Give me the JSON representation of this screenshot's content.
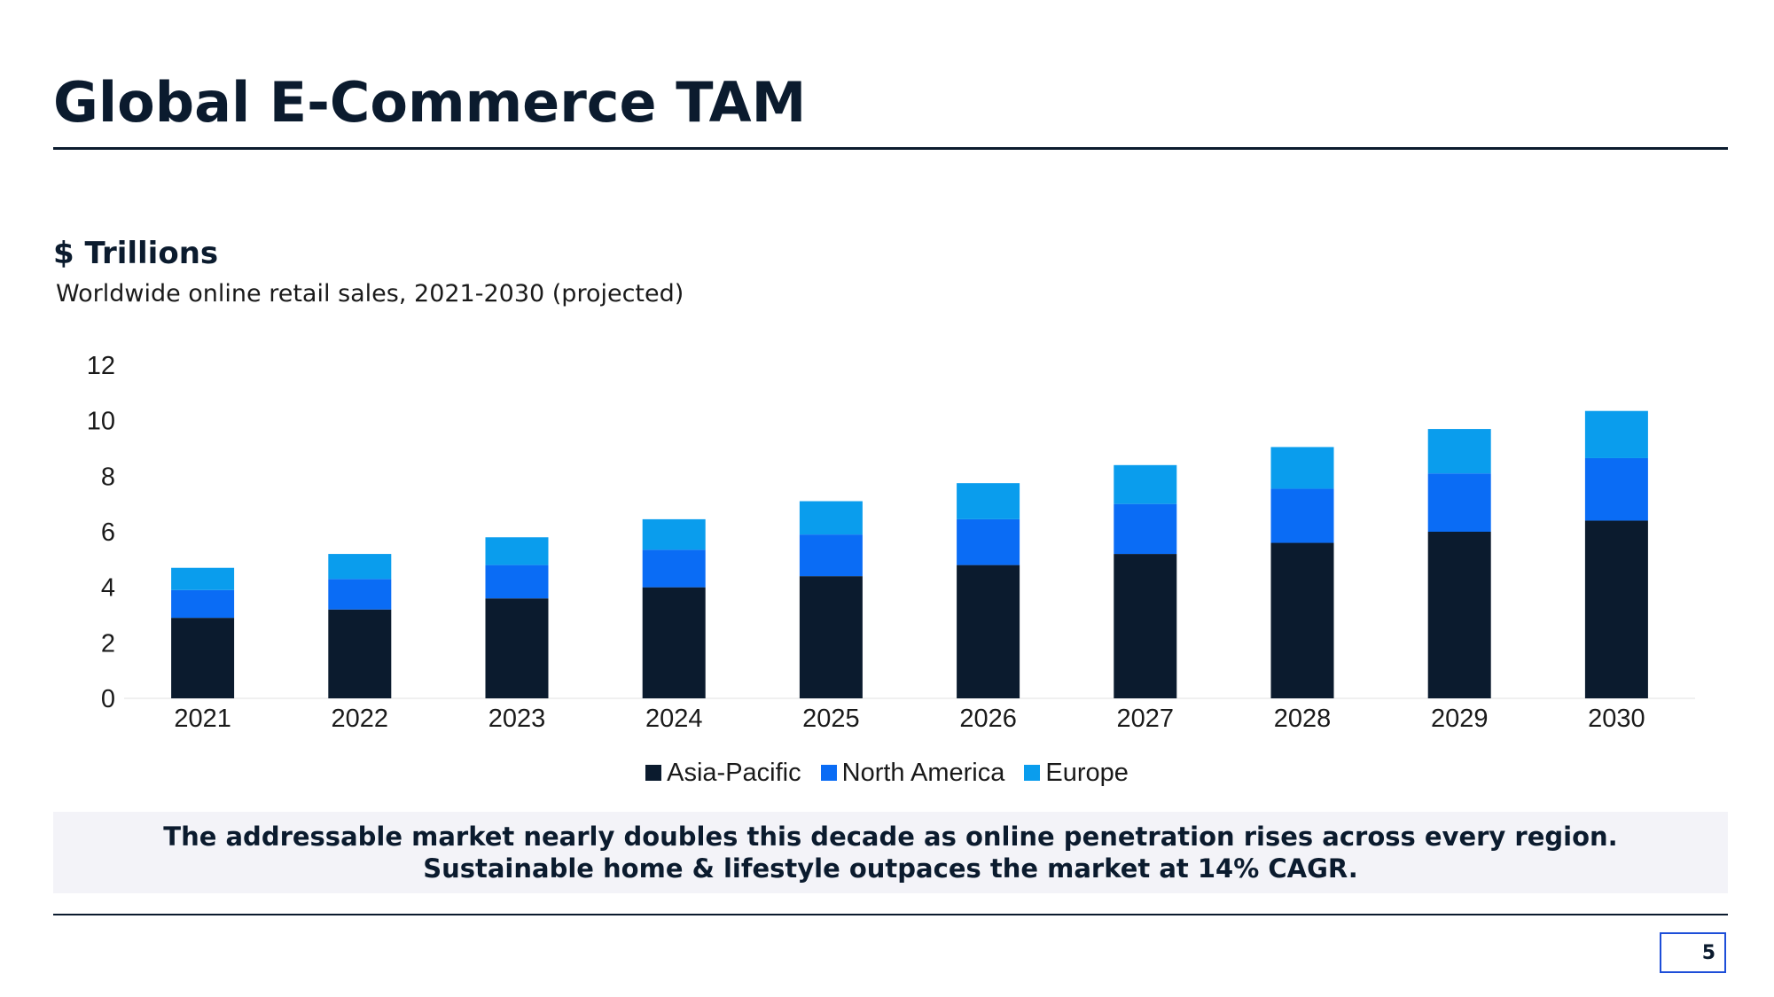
{
  "slide": {
    "title": "Global E-Commerce TAM",
    "unit_label": "$ Trillions",
    "subtitle": "Worldwide online retail sales, 2021-2030 (projected)",
    "callout": {
      "line1": "The addressable market nearly doubles this decade as online penetration rises across every region.",
      "line2": "Sustainable home & lifestyle outpaces the market at 14% CAGR."
    },
    "page_number": "5"
  },
  "colors": {
    "text": "#0b1b2e",
    "callout_bg": "#f3f3f8"
  },
  "chart_data": {
    "type": "bar",
    "stacked": true,
    "categories": [
      "2021",
      "2022",
      "2023",
      "2024",
      "2025",
      "2026",
      "2027",
      "2028",
      "2029",
      "2030"
    ],
    "series": [
      {
        "name": "Asia-Pacific",
        "color": "#0b1b2e",
        "values": [
          2.9,
          3.2,
          3.6,
          4.0,
          4.4,
          4.8,
          5.2,
          5.6,
          6.0,
          6.4
        ]
      },
      {
        "name": "North America",
        "color": "#0a6cf5",
        "values": [
          1.0,
          1.1,
          1.2,
          1.35,
          1.5,
          1.65,
          1.8,
          1.95,
          2.1,
          2.25
        ]
      },
      {
        "name": "Europe",
        "color": "#0a9ded",
        "values": [
          0.8,
          0.9,
          1.0,
          1.1,
          1.2,
          1.3,
          1.4,
          1.5,
          1.6,
          1.7
        ]
      }
    ],
    "yticks": [
      "0",
      "2",
      "4",
      "6",
      "8",
      "10",
      "12"
    ],
    "ylim": [
      0,
      12
    ],
    "grid": false,
    "legend": "bottom-center"
  }
}
